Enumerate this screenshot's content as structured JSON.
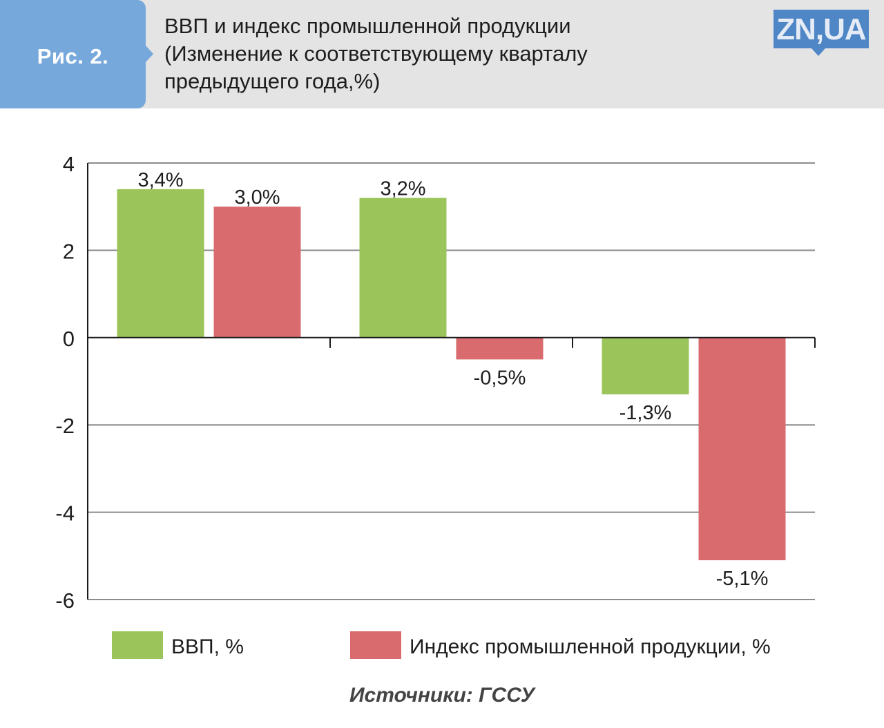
{
  "header": {
    "figure_label": "Рис. 2.",
    "title_lines": [
      "ВВП и индекс промышленной продукции",
      "(Изменение к соответствующему кварталу",
      "предыдущего года,%)"
    ],
    "logo_text": "ZN,UA"
  },
  "colors": {
    "header_bg": "#e4e4e4",
    "badge_bg": "#77a8dc",
    "logo_bg": "#4f86c6",
    "gdp": "#9bc45a",
    "industry": "#d96b6e",
    "grid": "#8c8c8c",
    "axis": "#1a1a1a"
  },
  "chart_data": {
    "type": "bar",
    "title": "ВВП и индекс промышленной продукции (Изменение к соответствующему кварталу предыдущего года,%)",
    "xlabel": "",
    "ylabel": "",
    "categories": [
      "",
      "",
      ""
    ],
    "series": [
      {
        "name": "ВВП, %",
        "color": "#9bc45a",
        "values": [
          3.4,
          3.2,
          -1.3
        ],
        "labels": [
          "3,4%",
          "3,2%",
          "-1,3%"
        ]
      },
      {
        "name": "Индекс промышленной продукции, %",
        "color": "#d96b6e",
        "values": [
          3.0,
          -0.5,
          -5.1
        ],
        "labels": [
          "3,0%",
          "-0,5%",
          "-5,1%"
        ]
      }
    ],
    "ylim": [
      -6,
      4
    ],
    "yticks": [
      4,
      2,
      0,
      -2,
      -4,
      -6
    ],
    "grid": true,
    "legend_position": "bottom"
  },
  "legend": [
    {
      "label": "ВВП, %",
      "color": "#9bc45a"
    },
    {
      "label": "Индекс промышленной продукции, %",
      "color": "#d96b6e"
    }
  ],
  "footer": {
    "source": "Источники: ГССУ"
  }
}
